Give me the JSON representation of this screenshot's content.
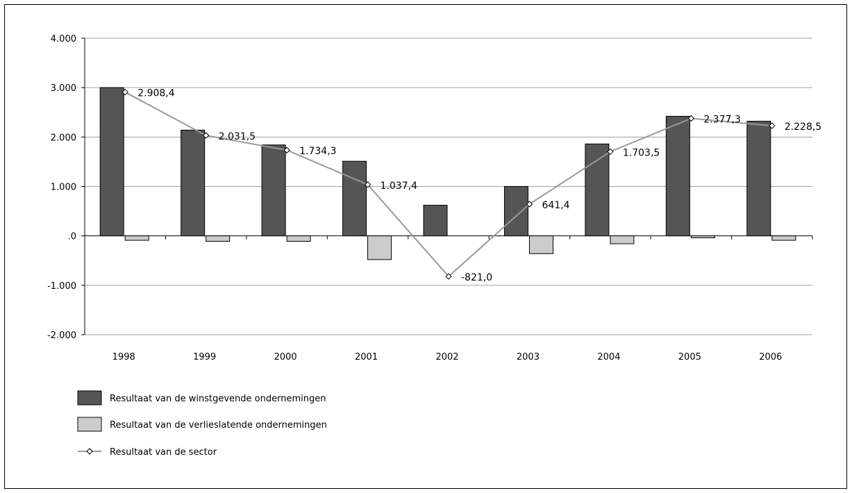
{
  "chart_data": {
    "type": "bar",
    "title": "",
    "xlabel": "",
    "ylabel": "",
    "categories": [
      "1998",
      "1999",
      "2000",
      "2001",
      "2002",
      "2003",
      "2004",
      "2005",
      "2006"
    ],
    "ylim": [
      -2000,
      4000
    ],
    "yticks": [
      -2000,
      -1000,
      0,
      1000,
      2000,
      3000,
      4000
    ],
    "ytick_labels": [
      "-2.000",
      "-1.000",
      ".0",
      "1.000",
      "2.000",
      "3.000",
      "4.000"
    ],
    "grid": true,
    "legend_position": "bottom-left",
    "series": [
      {
        "name": "Resultaat van de winstgevende ondernemingen",
        "kind": "bar",
        "color": "#555555",
        "values": [
          3000,
          2140,
          1840,
          1510,
          620,
          1000,
          1860,
          2420,
          2320
        ]
      },
      {
        "name": "Resultaat van de verlieslatende ondernemingen",
        "kind": "bar",
        "color": "#cccccc",
        "values": [
          -90,
          -110,
          -110,
          -480,
          0,
          -360,
          -160,
          -40,
          -90
        ]
      },
      {
        "name": "Resultaat van de sector",
        "kind": "line",
        "color": "#999999",
        "values": [
          2908.4,
          2031.5,
          1734.3,
          1037.4,
          -821.0,
          641.4,
          1703.5,
          2377.3,
          2228.5
        ],
        "labels": [
          "2.908,4",
          "2.031,5",
          "1.734,3",
          "1.037,4",
          "-821,0",
          "641,4",
          "1.703,5",
          "2.377,3",
          "2.228,5"
        ]
      }
    ]
  }
}
